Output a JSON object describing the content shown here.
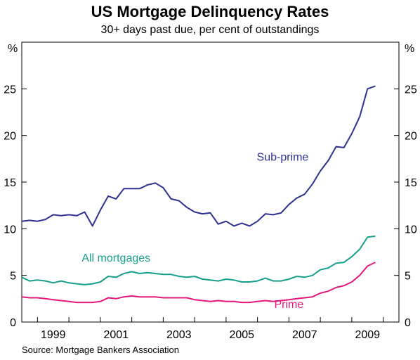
{
  "title": "US Mortgage Delinquency Rates",
  "subtitle": "30+ days past due, per cent of outstandings",
  "source": "Source: Mortgage Bankers Association",
  "chart_data": {
    "type": "line",
    "ylabel_left": "%",
    "ylabel_right": "%",
    "ylim": [
      0,
      30
    ],
    "yticks": [
      0,
      5,
      10,
      15,
      20,
      25
    ],
    "xlim": [
      1997.5,
      2009.5
    ],
    "xticks": [
      1999,
      2001,
      2003,
      2005,
      2007,
      2009
    ],
    "series": [
      {
        "name": "Sub-prime",
        "color": "#2e3192",
        "label_pos": [
          2005.8,
          17.3
        ],
        "x": [
          1997.5,
          1997.75,
          1998,
          1998.25,
          1998.5,
          1998.75,
          1999,
          1999.25,
          1999.5,
          1999.75,
          2000,
          2000.25,
          2000.5,
          2000.75,
          2001,
          2001.25,
          2001.5,
          2001.75,
          2002,
          2002.25,
          2002.5,
          2002.75,
          2003,
          2003.25,
          2003.5,
          2003.75,
          2004,
          2004.25,
          2004.5,
          2004.75,
          2005,
          2005.25,
          2005.5,
          2005.75,
          2006,
          2006.25,
          2006.5,
          2006.75,
          2007,
          2007.25,
          2007.5,
          2007.75,
          2008,
          2008.25,
          2008.5,
          2008.75,
          2009
        ],
        "y": [
          10.8,
          10.9,
          10.8,
          11.0,
          11.5,
          11.4,
          11.5,
          11.4,
          11.8,
          10.3,
          12.0,
          13.5,
          13.2,
          14.3,
          14.3,
          14.3,
          14.7,
          14.9,
          14.4,
          13.2,
          13.0,
          12.3,
          11.8,
          11.6,
          11.7,
          10.5,
          10.8,
          10.3,
          10.6,
          10.3,
          10.8,
          11.6,
          11.5,
          11.7,
          12.6,
          13.3,
          13.7,
          14.8,
          16.2,
          17.3,
          18.8,
          18.7,
          20.2,
          22.0,
          25.0,
          25.3,
          null
        ]
      },
      {
        "name": "All mortgages",
        "color": "#16a08c",
        "label_pos": [
          2000.5,
          6.5
        ],
        "x": [
          1997.5,
          1997.75,
          1998,
          1998.25,
          1998.5,
          1998.75,
          1999,
          1999.25,
          1999.5,
          1999.75,
          2000,
          2000.25,
          2000.5,
          2000.75,
          2001,
          2001.25,
          2001.5,
          2001.75,
          2002,
          2002.25,
          2002.5,
          2002.75,
          2003,
          2003.25,
          2003.5,
          2003.75,
          2004,
          2004.25,
          2004.5,
          2004.75,
          2005,
          2005.25,
          2005.5,
          2005.75,
          2006,
          2006.25,
          2006.5,
          2006.75,
          2007,
          2007.25,
          2007.5,
          2007.75,
          2008,
          2008.25,
          2008.5,
          2008.75,
          2009
        ],
        "y": [
          4.8,
          4.4,
          4.5,
          4.4,
          4.2,
          4.4,
          4.2,
          4.1,
          4.0,
          4.1,
          4.3,
          4.9,
          4.8,
          5.2,
          5.4,
          5.2,
          5.3,
          5.2,
          5.1,
          5.1,
          4.9,
          4.8,
          4.9,
          4.6,
          4.5,
          4.4,
          4.6,
          4.5,
          4.3,
          4.3,
          4.4,
          4.7,
          4.4,
          4.4,
          4.6,
          4.9,
          4.8,
          5.0,
          5.6,
          5.8,
          6.3,
          6.4,
          7.0,
          7.8,
          9.1,
          9.2,
          null
        ]
      },
      {
        "name": "Prime",
        "color": "#e6187a",
        "label_pos": [
          2006.0,
          1.5
        ],
        "x": [
          1997.5,
          1997.75,
          1998,
          1998.25,
          1998.5,
          1998.75,
          1999,
          1999.25,
          1999.5,
          1999.75,
          2000,
          2000.25,
          2000.5,
          2000.75,
          2001,
          2001.25,
          2001.5,
          2001.75,
          2002,
          2002.25,
          2002.5,
          2002.75,
          2003,
          2003.25,
          2003.5,
          2003.75,
          2004,
          2004.25,
          2004.5,
          2004.75,
          2005,
          2005.25,
          2005.5,
          2005.75,
          2006,
          2006.25,
          2006.5,
          2006.75,
          2007,
          2007.25,
          2007.5,
          2007.75,
          2008,
          2008.25,
          2008.5,
          2008.75,
          2009
        ],
        "y": [
          2.7,
          2.6,
          2.6,
          2.5,
          2.4,
          2.3,
          2.2,
          2.1,
          2.1,
          2.1,
          2.2,
          2.6,
          2.5,
          2.7,
          2.8,
          2.7,
          2.7,
          2.7,
          2.6,
          2.6,
          2.6,
          2.6,
          2.4,
          2.3,
          2.2,
          2.3,
          2.2,
          2.2,
          2.1,
          2.1,
          2.2,
          2.3,
          2.2,
          2.3,
          2.4,
          2.5,
          2.6,
          2.7,
          3.1,
          3.3,
          3.7,
          3.9,
          4.3,
          5.0,
          6.0,
          6.4,
          null
        ]
      }
    ]
  }
}
